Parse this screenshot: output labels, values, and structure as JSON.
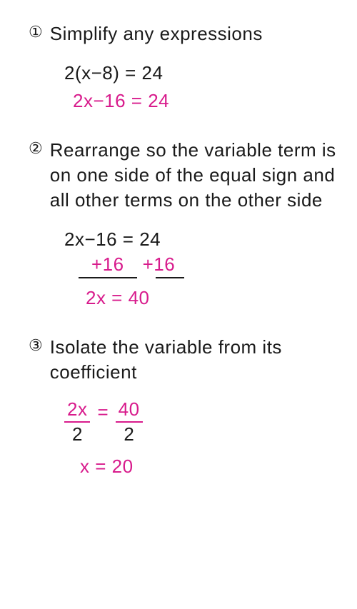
{
  "colors": {
    "text": "#1a1a1a",
    "accent": "#d81b8c",
    "background": "#ffffff"
  },
  "typography": {
    "font_family": "Comic Sans MS, cursive",
    "title_fontsize": 26,
    "equation_fontsize": 26
  },
  "step1": {
    "number": "①",
    "title": "Simplify any expressions",
    "eq1": "2(x−8) = 24",
    "eq2": "2x−16 = 24"
  },
  "step2": {
    "number": "②",
    "title": "Rearrange so the variable term is on one side of the equal sign and all other terms on the other side",
    "eq1": "2x−16 = 24",
    "add_left": "+16",
    "add_right": "+16",
    "result": "2x = 40"
  },
  "step3": {
    "number": "③",
    "title": "Isolate the variable from its coefficient",
    "frac1_top": "2x",
    "frac1_bot": "2",
    "eq_sign": "=",
    "frac2_top": "40",
    "frac2_bot": "2",
    "result": "x = 20"
  }
}
